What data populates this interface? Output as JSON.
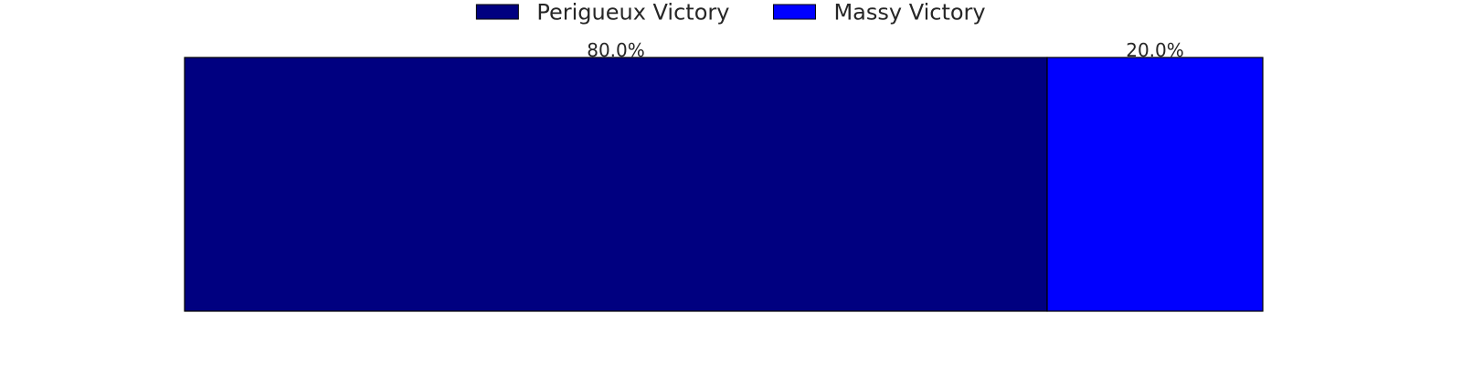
{
  "chart_data": {
    "type": "bar",
    "orientation": "horizontal-stacked",
    "title": "",
    "xlabel": "",
    "ylabel": "",
    "grid": false,
    "legend_position": "top-center",
    "xlim": [
      0,
      100
    ],
    "series": [
      {
        "name": "Perigueux Victory",
        "value": 80.0,
        "label": "80.0%",
        "color": "#000080"
      },
      {
        "name": "Massy Victory",
        "value": 20.0,
        "label": "20.0%",
        "color": "#0000ff"
      }
    ]
  }
}
